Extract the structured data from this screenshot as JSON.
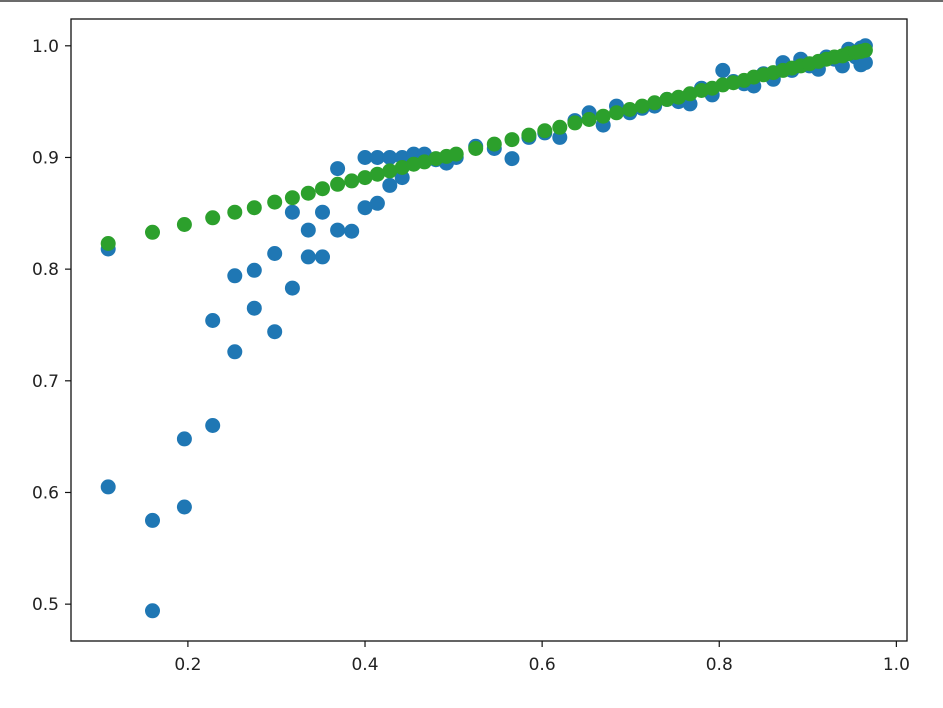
{
  "chart_data": {
    "type": "scatter",
    "title": "",
    "xlabel": "",
    "ylabel": "",
    "xlim": [
      0.068,
      1.012
    ],
    "ylim": [
      0.467,
      1.024
    ],
    "x_ticks": [
      0.2,
      0.4,
      0.6,
      0.8,
      1.0
    ],
    "x_tick_labels": [
      "0.2",
      "0.4",
      "0.6",
      "0.8",
      "1.0"
    ],
    "y_ticks": [
      0.5,
      0.6,
      0.7,
      0.8,
      0.9,
      1.0
    ],
    "y_tick_labels": [
      "0.5",
      "0.6",
      "0.7",
      "0.8",
      "0.9",
      "1.0"
    ],
    "grid": false,
    "legend": "none",
    "series": [
      {
        "color": "#1f77b4",
        "points": [
          [
            0.11,
            0.818
          ],
          [
            0.11,
            0.605
          ],
          [
            0.16,
            0.575
          ],
          [
            0.16,
            0.494
          ],
          [
            0.196,
            0.648
          ],
          [
            0.196,
            0.587
          ],
          [
            0.228,
            0.754
          ],
          [
            0.228,
            0.66
          ],
          [
            0.253,
            0.794
          ],
          [
            0.253,
            0.726
          ],
          [
            0.275,
            0.799
          ],
          [
            0.275,
            0.765
          ],
          [
            0.298,
            0.814
          ],
          [
            0.298,
            0.744
          ],
          [
            0.318,
            0.851
          ],
          [
            0.318,
            0.783
          ],
          [
            0.336,
            0.835
          ],
          [
            0.336,
            0.811
          ],
          [
            0.352,
            0.851
          ],
          [
            0.352,
            0.811
          ],
          [
            0.369,
            0.89
          ],
          [
            0.369,
            0.835
          ],
          [
            0.385,
            0.834
          ],
          [
            0.4,
            0.9
          ],
          [
            0.4,
            0.855
          ],
          [
            0.414,
            0.9
          ],
          [
            0.414,
            0.859
          ],
          [
            0.428,
            0.9
          ],
          [
            0.428,
            0.875
          ],
          [
            0.442,
            0.9
          ],
          [
            0.442,
            0.882
          ],
          [
            0.455,
            0.903
          ],
          [
            0.467,
            0.903
          ],
          [
            0.48,
            0.898
          ],
          [
            0.492,
            0.895
          ],
          [
            0.503,
            0.9
          ],
          [
            0.525,
            0.91
          ],
          [
            0.546,
            0.908
          ],
          [
            0.566,
            0.899
          ],
          [
            0.585,
            0.918
          ],
          [
            0.603,
            0.922
          ],
          [
            0.62,
            0.918
          ],
          [
            0.637,
            0.933
          ],
          [
            0.653,
            0.94
          ],
          [
            0.669,
            0.929
          ],
          [
            0.684,
            0.946
          ],
          [
            0.699,
            0.94
          ],
          [
            0.713,
            0.944
          ],
          [
            0.727,
            0.946
          ],
          [
            0.741,
            0.952
          ],
          [
            0.754,
            0.95
          ],
          [
            0.767,
            0.948
          ],
          [
            0.78,
            0.962
          ],
          [
            0.792,
            0.956
          ],
          [
            0.804,
            0.978
          ],
          [
            0.816,
            0.968
          ],
          [
            0.828,
            0.966
          ],
          [
            0.839,
            0.964
          ],
          [
            0.85,
            0.975
          ],
          [
            0.861,
            0.97
          ],
          [
            0.872,
            0.985
          ],
          [
            0.882,
            0.978
          ],
          [
            0.892,
            0.988
          ],
          [
            0.902,
            0.982
          ],
          [
            0.912,
            0.979
          ],
          [
            0.921,
            0.99
          ],
          [
            0.93,
            0.988
          ],
          [
            0.939,
            0.982
          ],
          [
            0.946,
            0.997
          ],
          [
            0.954,
            0.99
          ],
          [
            0.96,
            0.998
          ],
          [
            0.96,
            0.983
          ],
          [
            0.965,
            1.0
          ],
          [
            0.965,
            0.985
          ]
        ]
      },
      {
        "color": "#2ca02c",
        "points": [
          [
            0.11,
            0.823
          ],
          [
            0.16,
            0.833
          ],
          [
            0.196,
            0.84
          ],
          [
            0.228,
            0.846
          ],
          [
            0.253,
            0.851
          ],
          [
            0.275,
            0.855
          ],
          [
            0.298,
            0.86
          ],
          [
            0.318,
            0.864
          ],
          [
            0.336,
            0.868
          ],
          [
            0.352,
            0.872
          ],
          [
            0.369,
            0.876
          ],
          [
            0.385,
            0.879
          ],
          [
            0.4,
            0.882
          ],
          [
            0.414,
            0.885
          ],
          [
            0.428,
            0.888
          ],
          [
            0.442,
            0.891
          ],
          [
            0.455,
            0.894
          ],
          [
            0.467,
            0.896
          ],
          [
            0.48,
            0.899
          ],
          [
            0.492,
            0.901
          ],
          [
            0.503,
            0.903
          ],
          [
            0.525,
            0.908
          ],
          [
            0.546,
            0.912
          ],
          [
            0.566,
            0.916
          ],
          [
            0.585,
            0.92
          ],
          [
            0.603,
            0.924
          ],
          [
            0.62,
            0.927
          ],
          [
            0.637,
            0.931
          ],
          [
            0.653,
            0.934
          ],
          [
            0.669,
            0.937
          ],
          [
            0.684,
            0.94
          ],
          [
            0.699,
            0.943
          ],
          [
            0.713,
            0.946
          ],
          [
            0.727,
            0.949
          ],
          [
            0.741,
            0.952
          ],
          [
            0.754,
            0.954
          ],
          [
            0.767,
            0.957
          ],
          [
            0.78,
            0.96
          ],
          [
            0.792,
            0.962
          ],
          [
            0.804,
            0.965
          ],
          [
            0.816,
            0.967
          ],
          [
            0.828,
            0.969
          ],
          [
            0.839,
            0.972
          ],
          [
            0.85,
            0.974
          ],
          [
            0.861,
            0.976
          ],
          [
            0.872,
            0.978
          ],
          [
            0.882,
            0.98
          ],
          [
            0.892,
            0.982
          ],
          [
            0.902,
            0.984
          ],
          [
            0.912,
            0.986
          ],
          [
            0.921,
            0.988
          ],
          [
            0.93,
            0.99
          ],
          [
            0.939,
            0.991
          ],
          [
            0.946,
            0.993
          ],
          [
            0.954,
            0.994
          ],
          [
            0.96,
            0.995
          ],
          [
            0.965,
            0.996
          ]
        ]
      }
    ]
  }
}
